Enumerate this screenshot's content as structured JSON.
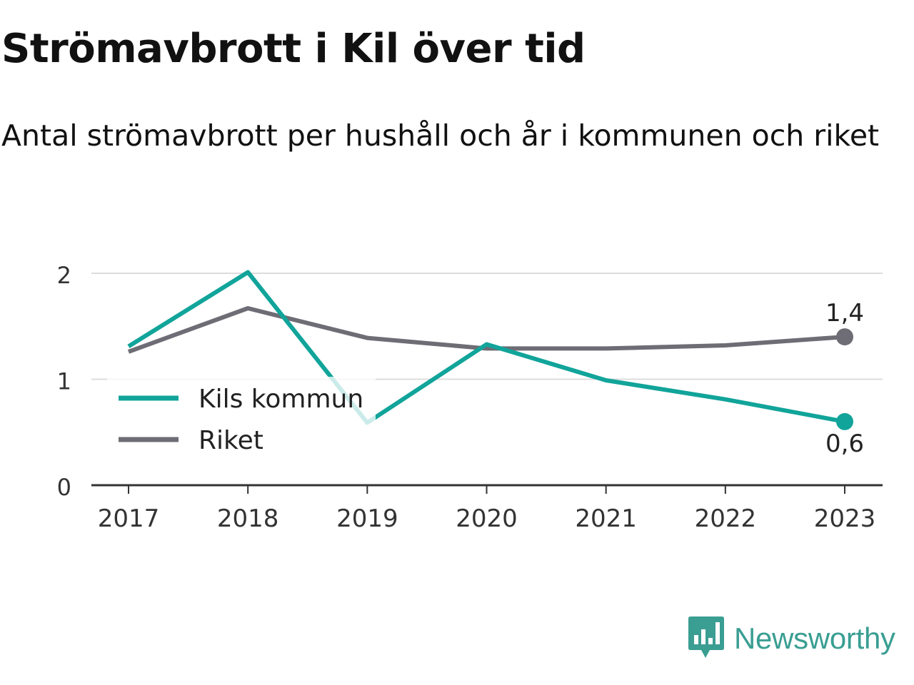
{
  "title": "Strömavbrott i Kil över tid",
  "subtitle": "Antal strömavbrott per hushåll och år i kommunen och riket",
  "brand": {
    "name": "Newsworthy",
    "logo_icon": "bar-chart-speech-bubble-icon",
    "color": "#3a9e92"
  },
  "chart_data": {
    "type": "line",
    "x": [
      "2017",
      "2018",
      "2019",
      "2020",
      "2021",
      "2022",
      "2023"
    ],
    "ylim": [
      0,
      2
    ],
    "yticks": [
      "0",
      "1",
      "2"
    ],
    "grid": true,
    "legend_position": "bottom-left",
    "series": [
      {
        "name": "Kils kommun",
        "color": "#11a49a",
        "values": [
          1.31,
          2.01,
          0.59,
          1.33,
          0.99,
          0.81,
          0.6
        ],
        "end_label": "0,6"
      },
      {
        "name": "Riket",
        "color": "#6e6c74",
        "values": [
          1.26,
          1.67,
          1.39,
          1.29,
          1.29,
          1.32,
          1.4
        ],
        "end_label": "1,4"
      }
    ]
  }
}
